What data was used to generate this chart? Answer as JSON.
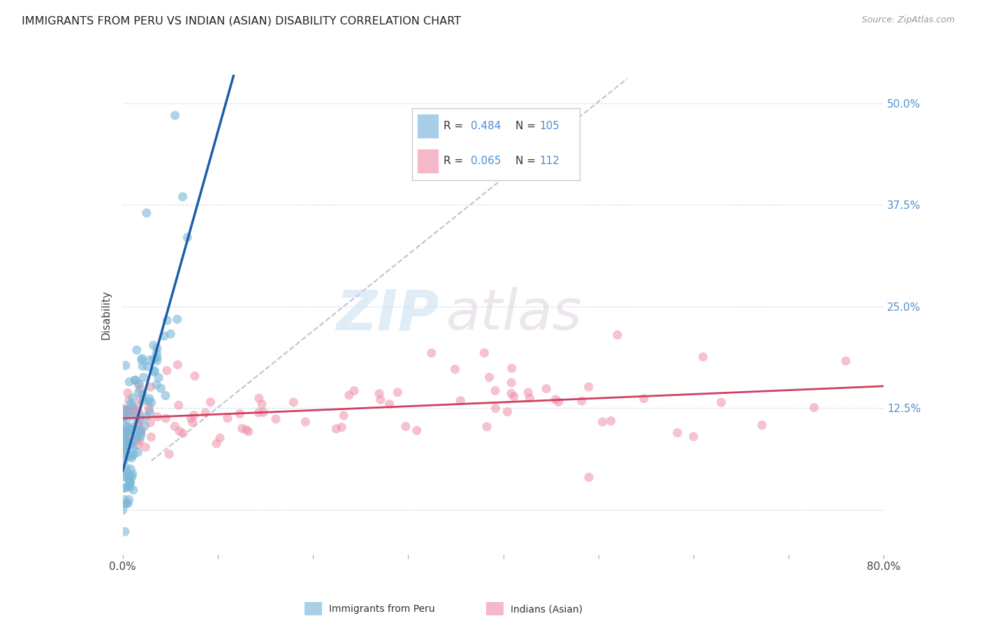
{
  "title": "IMMIGRANTS FROM PERU VS INDIAN (ASIAN) DISABILITY CORRELATION CHART",
  "source": "Source: ZipAtlas.com",
  "ylabel": "Disability",
  "yticks": [
    0.0,
    0.125,
    0.25,
    0.375,
    0.5
  ],
  "ytick_labels": [
    "",
    "12.5%",
    "25.0%",
    "37.5%",
    "50.0%"
  ],
  "xlim": [
    0.0,
    0.8
  ],
  "ylim": [
    -0.055,
    0.535
  ],
  "watermark_zip": "ZIP",
  "watermark_atlas": "atlas",
  "legend_blue_r": "0.484",
  "legend_blue_n": "105",
  "legend_pink_r": "0.065",
  "legend_pink_n": "112",
  "blue_fill_color": "#a8cfe8",
  "pink_fill_color": "#f4b8c8",
  "blue_scatter_color": "#7bb8d8",
  "pink_scatter_color": "#f090a8",
  "blue_line_color": "#1a5fa8",
  "pink_line_color": "#d04060",
  "dashed_line_color": "#b8b8c8",
  "background_color": "#ffffff",
  "grid_color": "#d4dce8",
  "right_tick_color": "#5090d0",
  "n_blue": 105,
  "n_pink": 112
}
